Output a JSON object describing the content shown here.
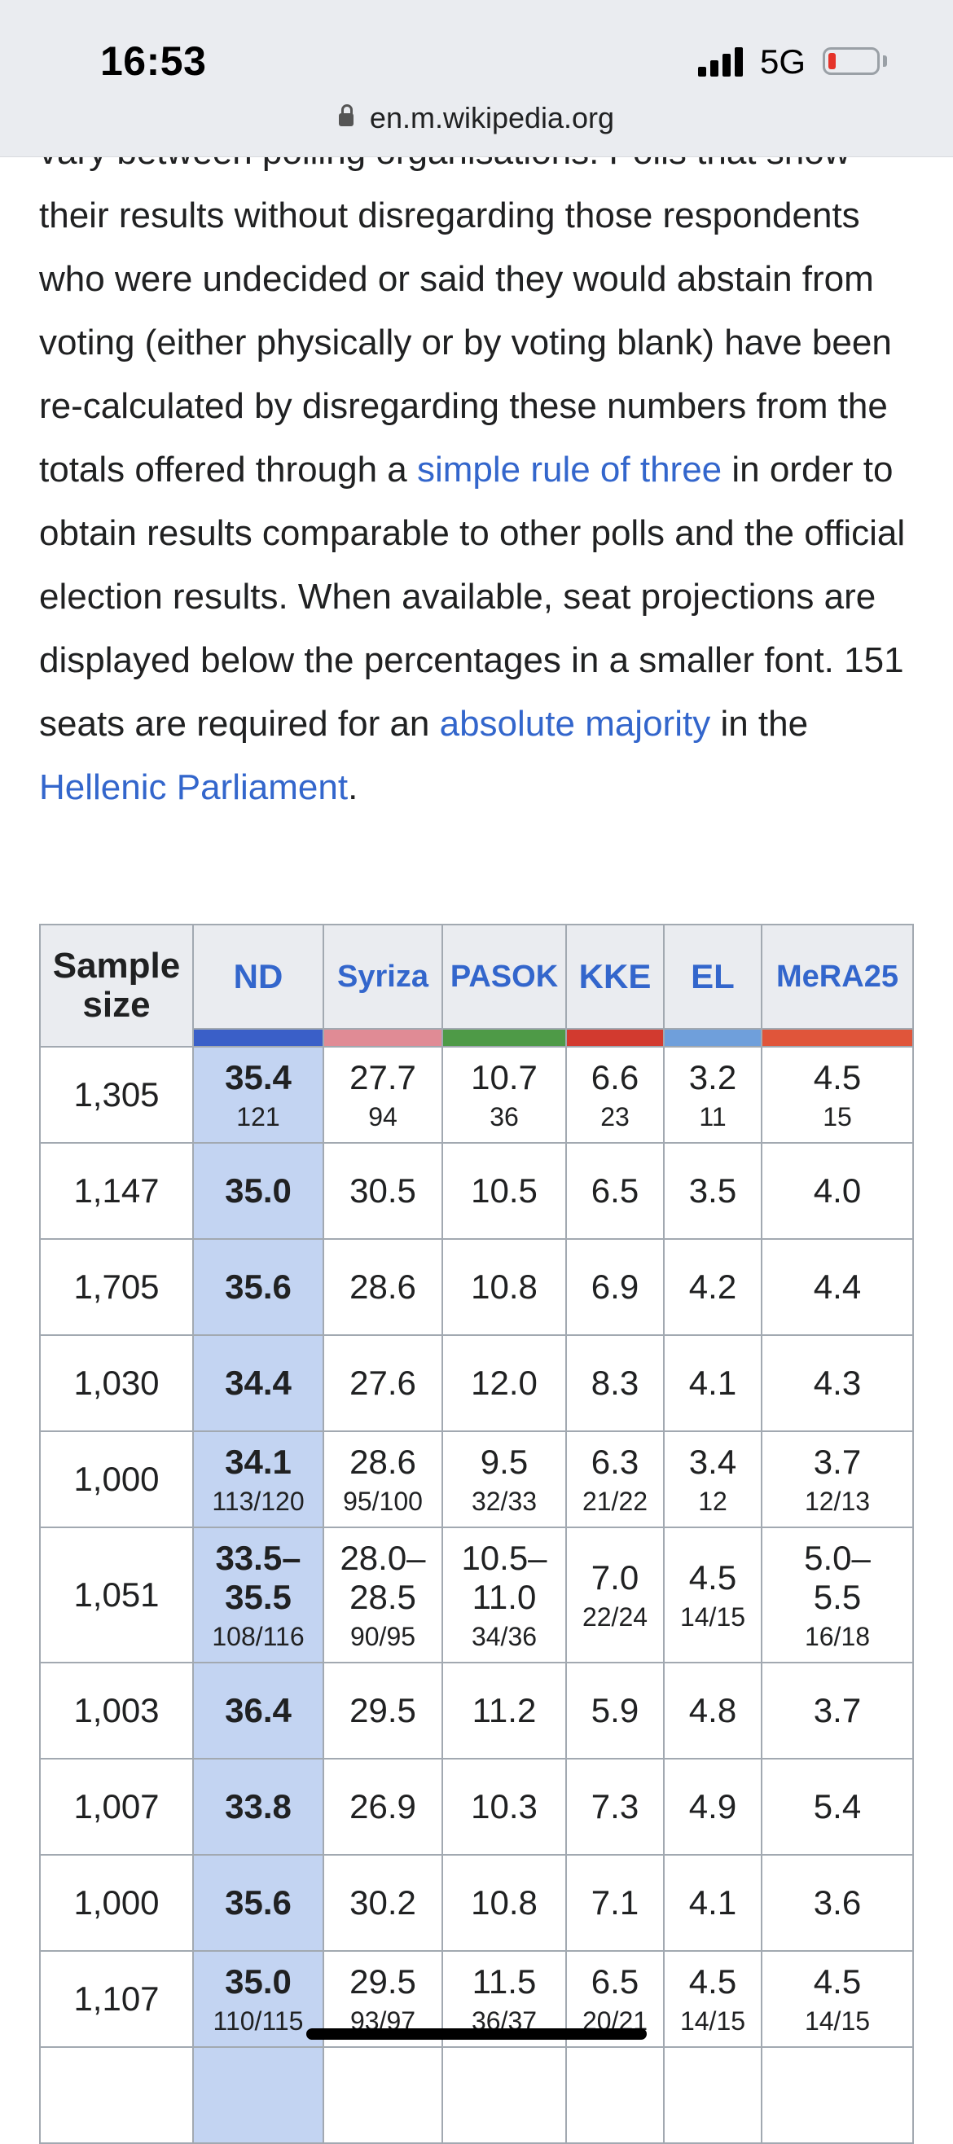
{
  "status_bar": {
    "time": "16:53",
    "network": "5G",
    "url": "en.m.wikipedia.org"
  },
  "article": {
    "line_partial": "vary between polling organisations. Polls that",
    "text_1": "show their results without disregarding those respondents who were undecided or said they would abstain from voting (either physically or by voting blank) have been re-calculated by disregarding these numbers from the totals offered through a ",
    "link_1": "simple rule of three",
    "text_2": " in order to obtain results comparable to other polls and the official election results. When available, seat projections are displayed below the percentages in a smaller font. 151 seats are required for an ",
    "link_2": "absolute majority",
    "text_3": " in the ",
    "link_3": "Hellenic Parliament",
    "text_4": "."
  },
  "table": {
    "headers": [
      "Sample size",
      "ND",
      "Syriza",
      "PASOK",
      "KKE",
      "EL",
      "MeRA25"
    ],
    "party_colors": [
      "#3a5fc8",
      "#e08b95",
      "#4e9a47",
      "#d23a2f",
      "#6f9fdb",
      "#e0553a"
    ],
    "rows": [
      {
        "sample": "1,305",
        "nd": "35.4",
        "nd_seats": "121",
        "syriza": "27.7",
        "syriza_seats": "94",
        "pasok": "10.7",
        "pasok_seats": "36",
        "kke": "6.6",
        "kke_seats": "23",
        "el": "3.2",
        "el_seats": "11",
        "mera": "4.5",
        "mera_seats": "15"
      },
      {
        "sample": "1,147",
        "nd": "35.0",
        "syriza": "30.5",
        "pasok": "10.5",
        "kke": "6.5",
        "el": "3.5",
        "mera": "4.0"
      },
      {
        "sample": "1,705",
        "nd": "35.6",
        "syriza": "28.6",
        "pasok": "10.8",
        "kke": "6.9",
        "el": "4.2",
        "mera": "4.4"
      },
      {
        "sample": "1,030",
        "nd": "34.4",
        "syriza": "27.6",
        "pasok": "12.0",
        "kke": "8.3",
        "el": "4.1",
        "mera": "4.3"
      },
      {
        "sample": "1,000",
        "nd": "34.1",
        "nd_seats": "113/120",
        "syriza": "28.6",
        "syriza_seats": "95/100",
        "pasok": "9.5",
        "pasok_seats": "32/33",
        "kke": "6.3",
        "kke_seats": "21/22",
        "el": "3.4",
        "el_seats": "12",
        "mera": "3.7",
        "mera_seats": "12/13"
      },
      {
        "sample": "1,051",
        "nd_a": "33.5–",
        "nd_b": "35.5",
        "nd_seats": "108/116",
        "syriza_a": "28.0–",
        "syriza_b": "28.5",
        "syriza_seats": "90/95",
        "pasok_a": "10.5–",
        "pasok_b": "11.0",
        "pasok_seats": "34/36",
        "kke": "7.0",
        "kke_seats": "22/24",
        "el": "4.5",
        "el_seats": "14/15",
        "mera_a": "5.0–",
        "mera_b": "5.5",
        "mera_seats": "16/18"
      },
      {
        "sample": "1,003",
        "nd": "36.4",
        "syriza": "29.5",
        "pasok": "11.2",
        "kke": "5.9",
        "el": "4.8",
        "mera": "3.7"
      },
      {
        "sample": "1,007",
        "nd": "33.8",
        "syriza": "26.9",
        "pasok": "10.3",
        "kke": "7.3",
        "el": "4.9",
        "mera": "5.4"
      },
      {
        "sample": "1,000",
        "nd": "35.6",
        "syriza": "30.2",
        "pasok": "10.8",
        "kke": "7.1",
        "el": "4.1",
        "mera": "3.6"
      },
      {
        "sample": "1,107",
        "nd": "35.0",
        "nd_seats": "110/115",
        "syriza": "29.5",
        "syriza_seats": "93/97",
        "pasok": "11.5",
        "pasok_seats": "36/37",
        "kke": "6.5",
        "kke_seats": "20/21",
        "el": "4.5",
        "el_seats": "14/15",
        "mera": "4.5",
        "mera_seats": "14/15"
      }
    ]
  }
}
